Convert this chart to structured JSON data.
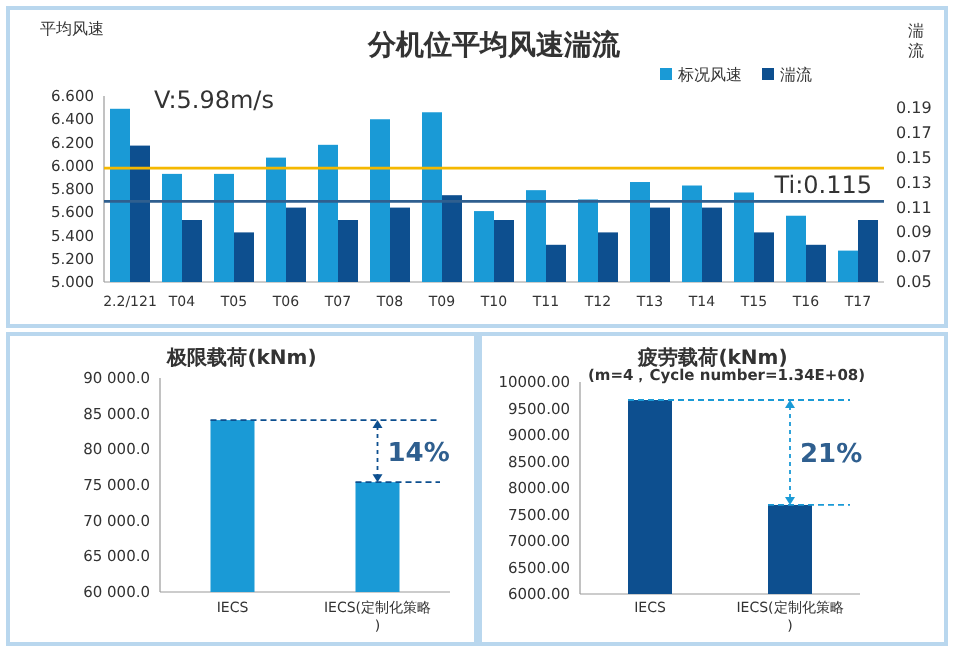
{
  "chart_data": [
    {
      "type": "bar",
      "title": "分机位平均风速湍流",
      "ylabel": "平均风速",
      "y2label": "湍流",
      "categories": [
        "2.2/121",
        "T04",
        "T05",
        "T06",
        "T07",
        "T08",
        "T09",
        "T10",
        "T11",
        "T12",
        "T13",
        "T14",
        "T15",
        "T16",
        "T17"
      ],
      "series": [
        {
          "name": "标况风速",
          "color": "#1a9ad6",
          "values": [
            6.49,
            5.93,
            5.93,
            6.07,
            6.18,
            6.4,
            6.46,
            5.61,
            5.79,
            5.71,
            5.86,
            5.83,
            5.77,
            5.57,
            5.27
          ]
        },
        {
          "name": "湍流",
          "color": "#0d4f8f",
          "axis": "y2",
          "values": [
            0.16,
            0.1,
            0.09,
            0.11,
            0.1,
            0.11,
            0.12,
            0.1,
            0.08,
            0.09,
            0.11,
            0.11,
            0.09,
            0.08,
            0.1
          ]
        }
      ],
      "ylim": [
        5.0,
        6.6
      ],
      "yticks": [
        {
          "value": 5.0,
          "label": "5.000"
        },
        {
          "value": 5.2,
          "label": "5.200"
        },
        {
          "value": 5.4,
          "label": "5.400"
        },
        {
          "value": 5.6,
          "label": "5.600"
        },
        {
          "value": 5.8,
          "label": "5.800"
        },
        {
          "value": 6.0,
          "label": "6.000"
        },
        {
          "value": 6.2,
          "label": "6.200"
        },
        {
          "value": 6.4,
          "label": "6.400"
        },
        {
          "value": 6.6,
          "label": "6.600"
        }
      ],
      "y2lim": [
        0.05,
        0.2
      ],
      "y2ticks": [
        0.05,
        0.07,
        0.09,
        0.11,
        0.13,
        0.15,
        0.17,
        0.19
      ],
      "ref_lines": [
        {
          "axis": "y",
          "value": 5.98,
          "label": "V:5.98m/s",
          "color": "#f5b800"
        },
        {
          "axis": "y2",
          "value": 0.115,
          "label": "Ti:0.115",
          "color": "#2f5f8f"
        }
      ],
      "legend": "top right"
    },
    {
      "type": "bar",
      "title": "极限载荷(kNm)",
      "categories": [
        "IECS",
        "IECS(定制化策略)"
      ],
      "values": [
        84100,
        75400
      ],
      "color": "#1a9ad6",
      "ylim": [
        60000,
        90000
      ],
      "yticks": [
        {
          "value": 60000,
          "label": "60 000.0"
        },
        {
          "value": 65000,
          "label": "65 000.0"
        },
        {
          "value": 70000,
          "label": "70 000.0"
        },
        {
          "value": 75000,
          "label": "75 000.0"
        },
        {
          "value": 80000,
          "label": "80 000.0"
        },
        {
          "value": 85000,
          "label": "85 000.0"
        },
        {
          "value": 90000,
          "label": "90 000.0"
        }
      ],
      "ref_lines": [
        {
          "axis": "y",
          "value": 84100,
          "color": "#0d4f8f",
          "line_style": "dashed"
        },
        {
          "axis": "y",
          "value": 75400,
          "color": "#0d4f8f",
          "line_style": "dashed"
        }
      ],
      "annotations": [
        "14%"
      ]
    },
    {
      "type": "bar",
      "title": "疲劳载荷(kNm)",
      "subtitle": "(m=4，Cycle number=1.34E+08)",
      "categories": [
        "IECS",
        "IECS(定制化策略)"
      ],
      "values": [
        9660,
        7680
      ],
      "color": "#0d4f8f",
      "ylim": [
        6000,
        10000
      ],
      "yticks": [
        {
          "value": 6000,
          "label": "6000.00"
        },
        {
          "value": 6500,
          "label": "6500.00"
        },
        {
          "value": 7000,
          "label": "7000.00"
        },
        {
          "value": 7500,
          "label": "7500.00"
        },
        {
          "value": 8000,
          "label": "8000.00"
        },
        {
          "value": 8500,
          "label": "8500.00"
        },
        {
          "value": 9000,
          "label": "9000.00"
        },
        {
          "value": 9500,
          "label": "9500.00"
        },
        {
          "value": 10000,
          "label": "10000.00"
        }
      ],
      "ref_lines": [
        {
          "axis": "y",
          "value": 9660,
          "color": "#1a9ad6",
          "line_style": "dashed"
        },
        {
          "axis": "y",
          "value": 7680,
          "color": "#1a9ad6",
          "line_style": "dashed"
        }
      ],
      "annotations": [
        "21%"
      ]
    }
  ]
}
